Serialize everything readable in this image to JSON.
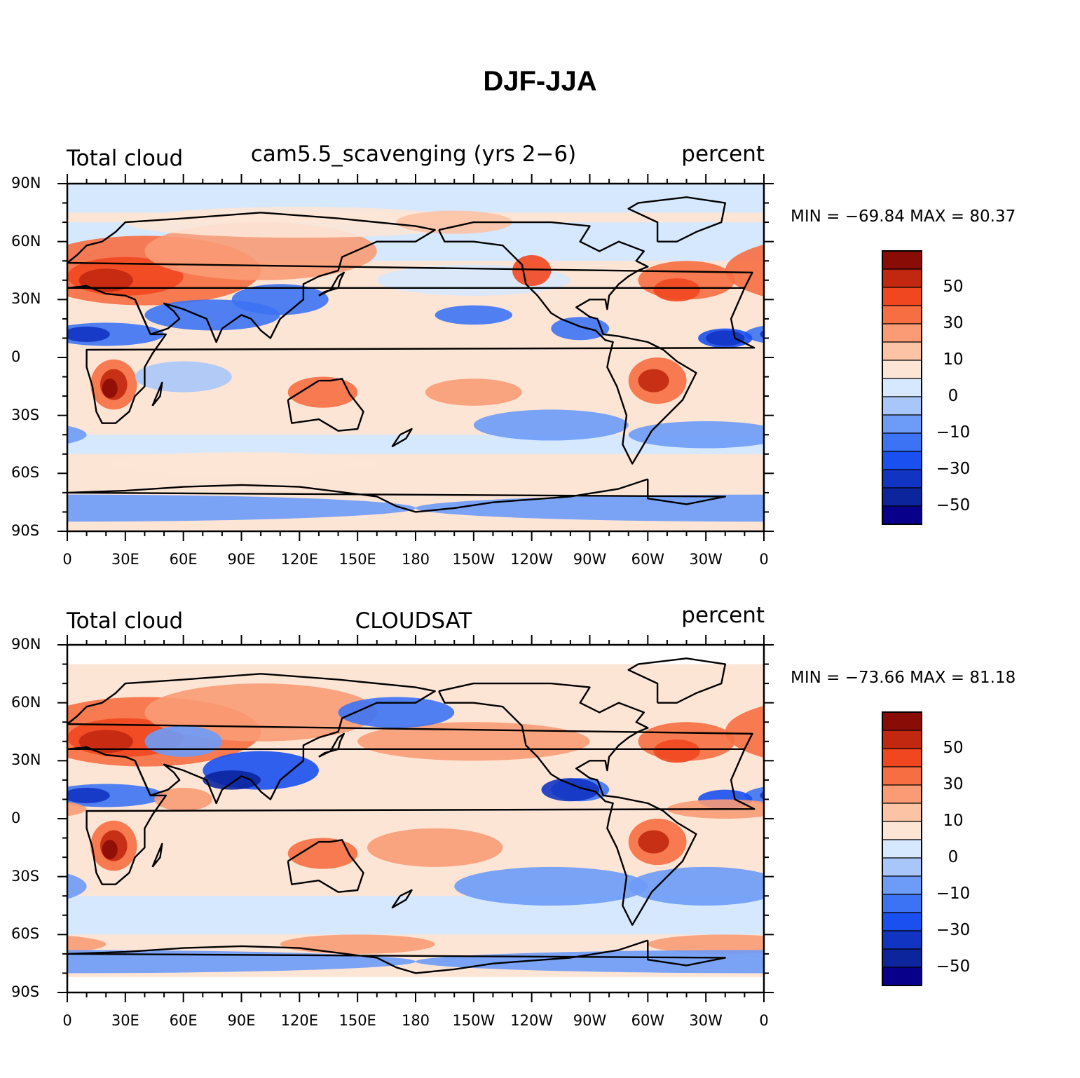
{
  "title": "DJF-JJA",
  "colors": {
    "levels": [
      "#08008a",
      "#0c259d",
      "#1234c2",
      "#1a50f0",
      "#3c73f4",
      "#6d9bf8",
      "#a8c6fa",
      "#d6e8fe",
      "#fde5d6",
      "#fcc3a5",
      "#fa9b76",
      "#f66e42",
      "#f14720",
      "#c2280f",
      "#8a0c06"
    ],
    "coast": "#000000"
  },
  "colorbar": {
    "labels": [
      "50",
      "30",
      "10",
      "0",
      "−10",
      "−30",
      "−50"
    ]
  },
  "axes": {
    "y_ticks": [
      "90N",
      "60N",
      "30N",
      "0",
      "30S",
      "60S",
      "90S"
    ],
    "x_ticks": [
      "0",
      "30E",
      "60E",
      "90E",
      "120E",
      "150E",
      "180",
      "150W",
      "120W",
      "90W",
      "60W",
      "30W",
      "0"
    ]
  },
  "panels": [
    {
      "left_label": "Total cloud",
      "center_label": "cam5.5_scavenging (yrs 2−6)",
      "right_label": "percent",
      "min_max": "MIN = −69.84  MAX =   80.37",
      "min": -69.84,
      "max": 80.37
    },
    {
      "left_label": "Total cloud",
      "center_label": "CLOUDSAT",
      "right_label": "percent",
      "min_max": "MIN = −73.66  MAX =   81.18",
      "min": -73.66,
      "max": 81.18
    }
  ]
}
